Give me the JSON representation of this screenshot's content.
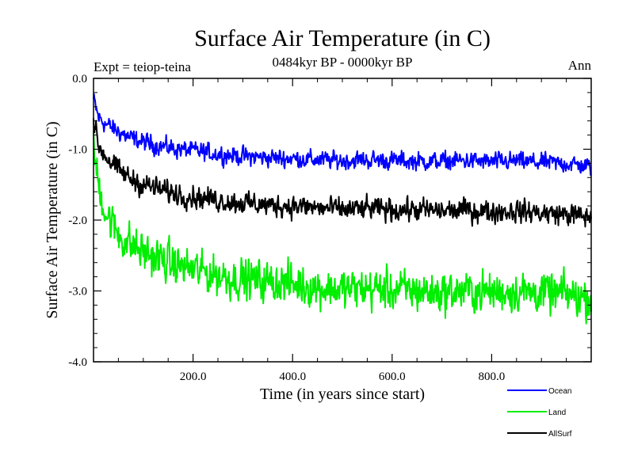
{
  "chart_data": {
    "type": "line",
    "title": "Surface Air Temperature (in C)",
    "subtitle": "0484kyr BP - 0000kyr BP",
    "left_note": "Expt = teiop-teina",
    "right_note": "Ann",
    "xlabel": "Time (in years since start)",
    "ylabel": "Surface Air Temperature (in C)",
    "xlim": [
      0,
      1000
    ],
    "ylim": [
      -4.0,
      0.0
    ],
    "x_ticks": [
      200,
      400,
      600,
      800
    ],
    "x_tick_labels": [
      "200.0",
      "400.0",
      "600.0",
      "800.0"
    ],
    "y_ticks": [
      0.0,
      -1.0,
      -2.0,
      -3.0,
      -4.0
    ],
    "y_tick_labels": [
      "0.0",
      "-1.0",
      "-2.0",
      "-3.0",
      "-4.0"
    ],
    "x": [
      0,
      10,
      25,
      50,
      75,
      100,
      150,
      200,
      250,
      300,
      350,
      400,
      450,
      500,
      550,
      600,
      650,
      700,
      750,
      800,
      850,
      900,
      950,
      1000
    ],
    "series": [
      {
        "name": "Ocean",
        "color": "#0000ff",
        "noise": 0.09,
        "values": [
          -0.3,
          -0.55,
          -0.65,
          -0.75,
          -0.85,
          -0.9,
          -0.98,
          -1.02,
          -1.07,
          -1.1,
          -1.12,
          -1.13,
          -1.15,
          -1.16,
          -1.15,
          -1.16,
          -1.17,
          -1.17,
          -1.16,
          -1.18,
          -1.17,
          -1.19,
          -1.2,
          -1.25
        ]
      },
      {
        "name": "Land",
        "color": "#00ee00",
        "noise": 0.2,
        "values": [
          -1.0,
          -1.5,
          -1.9,
          -2.2,
          -2.35,
          -2.45,
          -2.6,
          -2.7,
          -2.78,
          -2.83,
          -2.87,
          -2.9,
          -2.95,
          -2.98,
          -2.97,
          -2.98,
          -3.0,
          -3.02,
          -3.0,
          -3.02,
          -3.0,
          -3.03,
          -3.05,
          -3.1
        ]
      },
      {
        "name": "AllSurf",
        "color": "#000000",
        "noise": 0.11,
        "values": [
          -0.6,
          -0.95,
          -1.1,
          -1.3,
          -1.42,
          -1.5,
          -1.6,
          -1.67,
          -1.72,
          -1.76,
          -1.79,
          -1.8,
          -1.83,
          -1.85,
          -1.84,
          -1.85,
          -1.86,
          -1.87,
          -1.86,
          -1.88,
          -1.87,
          -1.9,
          -1.92,
          -1.96
        ]
      }
    ],
    "legend": [
      {
        "label": "Ocean",
        "color": "#0000ff"
      },
      {
        "label": "Land",
        "color": "#00ee00"
      },
      {
        "label": "AllSurf",
        "color": "#000000"
      }
    ],
    "legend_position": "bottom-right"
  }
}
